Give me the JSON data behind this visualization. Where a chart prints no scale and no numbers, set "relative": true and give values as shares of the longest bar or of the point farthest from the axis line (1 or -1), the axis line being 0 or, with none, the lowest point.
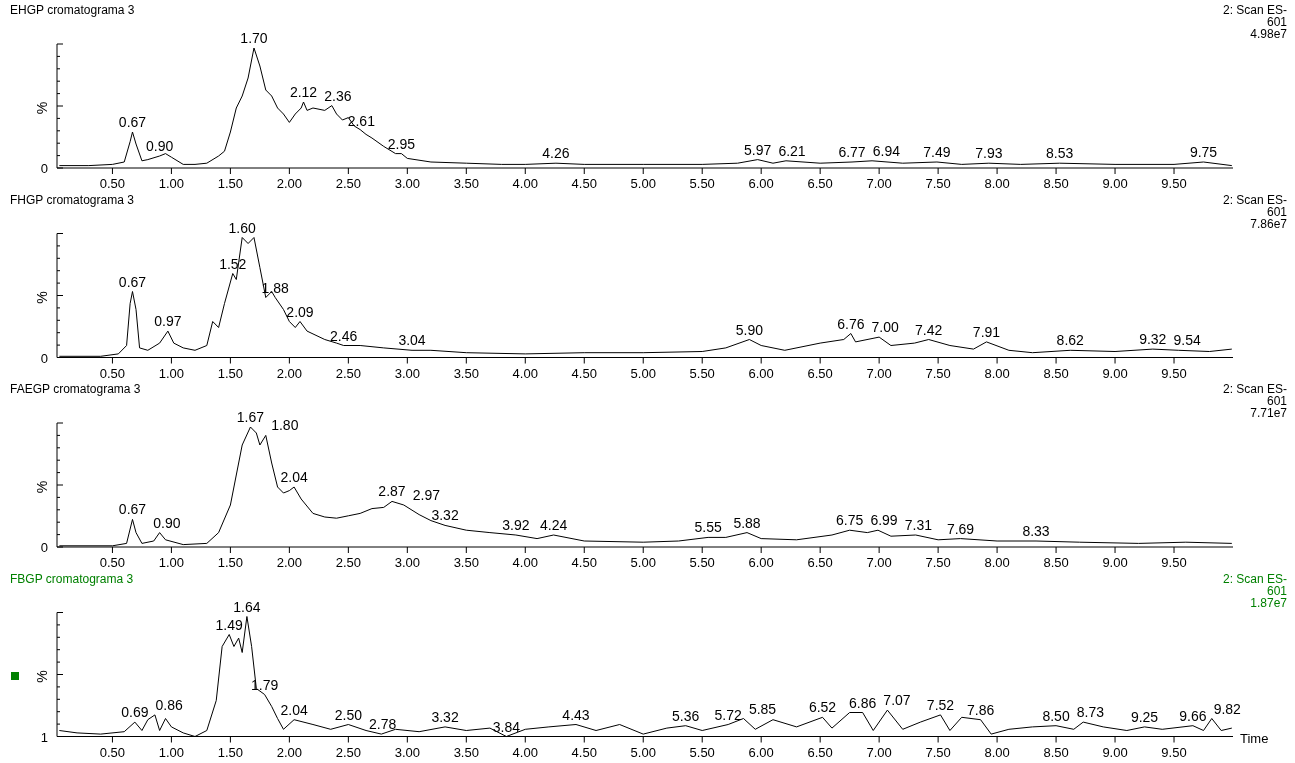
{
  "chart_data": [
    {
      "type": "line",
      "title": "EHGP cromatograma 3",
      "subtitle": "2: Scan ES-\n601\n4.98e7",
      "ylabel": "%",
      "relative": true,
      "xlim": [
        0.03,
        10.0
      ],
      "xticks": [
        {
          "value": 0.5,
          "label": "0.50"
        },
        {
          "value": 1,
          "label": "1.00"
        },
        {
          "value": 1.5,
          "label": "1.50"
        },
        {
          "value": 2,
          "label": "2.00"
        },
        {
          "value": 2.5,
          "label": "2.50"
        },
        {
          "value": 3,
          "label": "3.00"
        },
        {
          "value": 3.5,
          "label": "3.50"
        },
        {
          "value": 4,
          "label": "4.00"
        },
        {
          "value": 4.5,
          "label": "4.50"
        },
        {
          "value": 5,
          "label": "5.00"
        },
        {
          "value": 5.5,
          "label": "5.50"
        },
        {
          "value": 6,
          "label": "6.00"
        },
        {
          "value": 6.5,
          "label": "6.50"
        },
        {
          "value": 7,
          "label": "7.00"
        },
        {
          "value": 7.5,
          "label": "7.50"
        },
        {
          "value": 8,
          "label": "8.00"
        },
        {
          "value": 8.5,
          "label": "8.50"
        },
        {
          "value": 9,
          "label": "9.00"
        },
        {
          "value": 9.5,
          "label": "9.50"
        }
      ],
      "series": [
        {
          "color": "#000000",
          "x": [
            0.05,
            0.3,
            0.5,
            0.6,
            0.65,
            0.67,
            0.7,
            0.75,
            0.8,
            0.9,
            0.95,
            1.0,
            1.1,
            1.2,
            1.3,
            1.4,
            1.45,
            1.5,
            1.55,
            1.6,
            1.65,
            1.7,
            1.75,
            1.8,
            1.85,
            1.9,
            1.95,
            2.0,
            2.05,
            2.1,
            2.12,
            2.15,
            2.2,
            2.3,
            2.36,
            2.4,
            2.45,
            2.5,
            2.55,
            2.6,
            2.65,
            2.7,
            2.8,
            2.9,
            2.95,
            3.0,
            3.2,
            3.5,
            3.8,
            4.0,
            4.26,
            4.5,
            5.0,
            5.5,
            5.8,
            5.97,
            6.1,
            6.21,
            6.5,
            6.77,
            6.94,
            7.2,
            7.49,
            7.7,
            7.93,
            8.2,
            8.53,
            9.0,
            9.5,
            9.75,
            9.99
          ],
          "values": [
            0.02,
            0.02,
            0.03,
            0.05,
            0.22,
            0.3,
            0.2,
            0.06,
            0.07,
            0.1,
            0.12,
            0.09,
            0.03,
            0.03,
            0.04,
            0.1,
            0.14,
            0.3,
            0.5,
            0.6,
            0.75,
            1.0,
            0.85,
            0.65,
            0.6,
            0.5,
            0.45,
            0.38,
            0.45,
            0.5,
            0.55,
            0.48,
            0.5,
            0.48,
            0.52,
            0.45,
            0.4,
            0.42,
            0.35,
            0.32,
            0.28,
            0.25,
            0.18,
            0.12,
            0.12,
            0.08,
            0.05,
            0.04,
            0.03,
            0.03,
            0.04,
            0.03,
            0.03,
            0.03,
            0.04,
            0.07,
            0.04,
            0.06,
            0.04,
            0.05,
            0.06,
            0.04,
            0.05,
            0.03,
            0.04,
            0.03,
            0.04,
            0.03,
            0.03,
            0.05,
            0.02
          ]
        }
      ],
      "annotations": [
        "0",
        {
          "text": "0.67",
          "x": 0.67,
          "y": 0.3
        },
        {
          "text": "0.90",
          "x": 0.9,
          "y": 0.1
        },
        {
          "text": "1.70",
          "x": 1.7,
          "y": 1.0
        },
        {
          "text": "2.12",
          "x": 2.12,
          "y": 0.55
        },
        {
          "text": "2.36",
          "x": 2.36,
          "y": 0.52
        },
        {
          "text": "2.61",
          "x": 2.61,
          "y": 0.31
        },
        {
          "text": "2.95",
          "x": 2.95,
          "y": 0.12
        },
        {
          "text": "4.26",
          "x": 4.26,
          "y": 0.04
        },
        {
          "text": "5.97",
          "x": 5.97,
          "y": 0.07
        },
        {
          "text": "6.21",
          "x": 6.21,
          "y": 0.06
        },
        {
          "text": "6.77",
          "x": 6.77,
          "y": 0.05
        },
        {
          "text": "6.94",
          "x": 6.94,
          "y": 0.06
        },
        {
          "text": "7.49",
          "x": 7.49,
          "y": 0.05
        },
        {
          "text": "7.93",
          "x": 7.93,
          "y": 0.04
        },
        {
          "text": "8.53",
          "x": 8.53,
          "y": 0.04
        },
        {
          "text": "9.75",
          "x": 9.75,
          "y": 0.05
        }
      ]
    },
    {
      "type": "line",
      "title": "FHGP cromatograma 3",
      "subtitle": "2: Scan ES-\n601\n7.86e7",
      "ylabel": "%",
      "relative": true,
      "xlim": [
        0.03,
        10.0
      ],
      "xticks": [
        {
          "value": 0.5,
          "label": "0.50"
        },
        {
          "value": 1,
          "label": "1.00"
        },
        {
          "value": 1.5,
          "label": "1.50"
        },
        {
          "value": 2,
          "label": "2.00"
        },
        {
          "value": 2.5,
          "label": "2.50"
        },
        {
          "value": 3,
          "label": "3.00"
        },
        {
          "value": 3.5,
          "label": "3.50"
        },
        {
          "value": 4,
          "label": "4.00"
        },
        {
          "value": 4.5,
          "label": "4.50"
        },
        {
          "value": 5,
          "label": "5.00"
        },
        {
          "value": 5.5,
          "label": "5.50"
        },
        {
          "value": 6,
          "label": "6.00"
        },
        {
          "value": 6.5,
          "label": "6.50"
        },
        {
          "value": 7,
          "label": "7.00"
        },
        {
          "value": 7.5,
          "label": "7.50"
        },
        {
          "value": 8,
          "label": "8.00"
        },
        {
          "value": 8.5,
          "label": "8.50"
        },
        {
          "value": 9,
          "label": "9.00"
        },
        {
          "value": 9.5,
          "label": "9.50"
        }
      ],
      "series": [
        {
          "color": "#000000",
          "x": [
            0.05,
            0.4,
            0.55,
            0.62,
            0.65,
            0.67,
            0.7,
            0.73,
            0.8,
            0.9,
            0.97,
            1.02,
            1.1,
            1.2,
            1.3,
            1.35,
            1.4,
            1.45,
            1.52,
            1.55,
            1.6,
            1.65,
            1.7,
            1.75,
            1.8,
            1.85,
            1.88,
            1.95,
            2.0,
            2.05,
            2.09,
            2.15,
            2.3,
            2.4,
            2.46,
            2.6,
            2.8,
            3.04,
            3.2,
            3.5,
            4.0,
            4.5,
            5.0,
            5.5,
            5.7,
            5.9,
            6.0,
            6.2,
            6.5,
            6.7,
            6.76,
            6.8,
            7.0,
            7.1,
            7.3,
            7.42,
            7.6,
            7.8,
            7.91,
            8.1,
            8.3,
            8.62,
            9.0,
            9.32,
            9.54,
            9.8,
            9.99
          ],
          "values": [
            0.01,
            0.01,
            0.03,
            0.1,
            0.45,
            0.55,
            0.4,
            0.08,
            0.06,
            0.12,
            0.22,
            0.12,
            0.08,
            0.06,
            0.1,
            0.3,
            0.25,
            0.45,
            0.7,
            0.65,
            1.0,
            0.95,
            1.0,
            0.75,
            0.5,
            0.55,
            0.5,
            0.4,
            0.3,
            0.25,
            0.3,
            0.22,
            0.15,
            0.12,
            0.1,
            0.1,
            0.08,
            0.06,
            0.06,
            0.04,
            0.03,
            0.04,
            0.04,
            0.05,
            0.08,
            0.15,
            0.1,
            0.06,
            0.12,
            0.15,
            0.2,
            0.13,
            0.17,
            0.1,
            0.12,
            0.15,
            0.1,
            0.07,
            0.13,
            0.06,
            0.04,
            0.06,
            0.05,
            0.07,
            0.06,
            0.05,
            0.07
          ]
        }
      ],
      "annotations": [
        "0",
        {
          "text": "0.67",
          "x": 0.67,
          "y": 0.55
        },
        {
          "text": "0.97",
          "x": 0.97,
          "y": 0.22
        },
        {
          "text": "1.52",
          "x": 1.52,
          "y": 0.7
        },
        {
          "text": "1.60",
          "x": 1.6,
          "y": 1.0
        },
        {
          "text": "1.88",
          "x": 1.88,
          "y": 0.5
        },
        {
          "text": "2.09",
          "x": 2.09,
          "y": 0.3
        },
        {
          "text": "2.46",
          "x": 2.46,
          "y": 0.1
        },
        {
          "text": "3.04",
          "x": 3.04,
          "y": 0.06
        },
        {
          "text": "5.90",
          "x": 5.9,
          "y": 0.15
        },
        {
          "text": "6.76",
          "x": 6.76,
          "y": 0.2
        },
        {
          "text": "7.00",
          "x": 7.0,
          "y": 0.17
        },
        {
          "text": "7.42",
          "x": 7.42,
          "y": 0.15
        },
        {
          "text": "7.91",
          "x": 7.91,
          "y": 0.13
        },
        {
          "text": "8.62",
          "x": 8.62,
          "y": 0.06
        },
        {
          "text": "9.32",
          "x": 9.32,
          "y": 0.07
        },
        {
          "text": "9.54",
          "x": 9.54,
          "y": 0.06
        }
      ]
    },
    {
      "type": "line",
      "title": "FAEGP cromatograma 3",
      "subtitle": "2: Scan ES-\n601\n7.71e7",
      "ylabel": "%",
      "relative": true,
      "xlim": [
        0.03,
        10.0
      ],
      "xticks": [
        {
          "value": 0.5,
          "label": "0.50"
        },
        {
          "value": 1,
          "label": "1.00"
        },
        {
          "value": 1.5,
          "label": "1.50"
        },
        {
          "value": 2,
          "label": "2.00"
        },
        {
          "value": 2.5,
          "label": "2.50"
        },
        {
          "value": 3,
          "label": "3.00"
        },
        {
          "value": 3.5,
          "label": "3.50"
        },
        {
          "value": 4,
          "label": "4.00"
        },
        {
          "value": 4.5,
          "label": "4.50"
        },
        {
          "value": 5,
          "label": "5.00"
        },
        {
          "value": 5.5,
          "label": "5.50"
        },
        {
          "value": 6,
          "label": "6.00"
        },
        {
          "value": 6.5,
          "label": "6.50"
        },
        {
          "value": 7,
          "label": "7.00"
        },
        {
          "value": 7.5,
          "label": "7.50"
        },
        {
          "value": 8,
          "label": "8.00"
        },
        {
          "value": 8.5,
          "label": "8.50"
        },
        {
          "value": 9,
          "label": "9.00"
        },
        {
          "value": 9.5,
          "label": "9.50"
        }
      ],
      "series": [
        {
          "color": "#000000",
          "x": [
            0.05,
            0.5,
            0.62,
            0.67,
            0.7,
            0.75,
            0.85,
            0.9,
            0.95,
            1.1,
            1.3,
            1.4,
            1.5,
            1.55,
            1.6,
            1.67,
            1.72,
            1.75,
            1.8,
            1.85,
            1.9,
            1.95,
            2.0,
            2.04,
            2.1,
            2.2,
            2.3,
            2.4,
            2.5,
            2.6,
            2.7,
            2.8,
            2.87,
            2.97,
            3.1,
            3.2,
            3.32,
            3.5,
            3.7,
            3.92,
            4.1,
            4.24,
            4.5,
            5.0,
            5.3,
            5.55,
            5.7,
            5.88,
            6.0,
            6.3,
            6.6,
            6.75,
            6.9,
            6.99,
            7.1,
            7.31,
            7.5,
            7.69,
            8.0,
            8.33,
            8.7,
            9.2,
            9.6,
            9.99
          ],
          "values": [
            0.01,
            0.01,
            0.03,
            0.23,
            0.12,
            0.03,
            0.05,
            0.12,
            0.06,
            0.02,
            0.03,
            0.12,
            0.35,
            0.6,
            0.85,
            1.0,
            0.95,
            0.85,
            0.93,
            0.7,
            0.5,
            0.45,
            0.47,
            0.5,
            0.4,
            0.28,
            0.25,
            0.24,
            0.26,
            0.28,
            0.32,
            0.33,
            0.38,
            0.35,
            0.27,
            0.22,
            0.18,
            0.14,
            0.12,
            0.1,
            0.07,
            0.1,
            0.05,
            0.04,
            0.05,
            0.08,
            0.08,
            0.12,
            0.07,
            0.06,
            0.1,
            0.14,
            0.12,
            0.14,
            0.09,
            0.1,
            0.06,
            0.07,
            0.05,
            0.05,
            0.04,
            0.03,
            0.04,
            0.03
          ]
        }
      ],
      "annotations": [
        "0",
        {
          "text": "0.67",
          "x": 0.67,
          "y": 0.23
        },
        {
          "text": "0.90",
          "x": 0.9,
          "y": 0.12
        },
        {
          "text": "1.67",
          "x": 1.67,
          "y": 1.0
        },
        {
          "text": "1.80",
          "x": 1.8,
          "y": 0.93
        },
        {
          "text": "2.04",
          "x": 2.04,
          "y": 0.5
        },
        {
          "text": "2.87",
          "x": 2.87,
          "y": 0.38
        },
        {
          "text": "2.97",
          "x": 2.97,
          "y": 0.35
        },
        {
          "text": "3.32",
          "x": 3.32,
          "y": 0.18
        },
        {
          "text": "3.92",
          "x": 3.92,
          "y": 0.1
        },
        {
          "text": "4.24",
          "x": 4.24,
          "y": 0.1
        },
        {
          "text": "5.55",
          "x": 5.55,
          "y": 0.08
        },
        {
          "text": "5.88",
          "x": 5.88,
          "y": 0.12
        },
        {
          "text": "6.75",
          "x": 6.75,
          "y": 0.14
        },
        {
          "text": "6.99",
          "x": 6.99,
          "y": 0.14
        },
        {
          "text": "7.31",
          "x": 7.31,
          "y": 0.1
        },
        {
          "text": "7.69",
          "x": 7.69,
          "y": 0.07
        },
        {
          "text": "8.33",
          "x": 8.33,
          "y": 0.05
        }
      ]
    },
    {
      "type": "line",
      "title": "FBGP cromatograma 3",
      "subtitle": "2: Scan ES-\n601\n1.87e7",
      "ylabel": "%",
      "xlabel": "Time",
      "relative": true,
      "xlim": [
        0.03,
        10.0
      ],
      "xticks": [
        {
          "value": 0.5,
          "label": "0.50"
        },
        {
          "value": 1,
          "label": "1.00"
        },
        {
          "value": 1.5,
          "label": "1.50"
        },
        {
          "value": 2,
          "label": "2.00"
        },
        {
          "value": 2.5,
          "label": "2.50"
        },
        {
          "value": 3,
          "label": "3.00"
        },
        {
          "value": 3.5,
          "label": "3.50"
        },
        {
          "value": 4,
          "label": "4.00"
        },
        {
          "value": 4.5,
          "label": "4.50"
        },
        {
          "value": 5,
          "label": "5.00"
        },
        {
          "value": 5.5,
          "label": "5.50"
        },
        {
          "value": 6,
          "label": "6.00"
        },
        {
          "value": 6.5,
          "label": "6.50"
        },
        {
          "value": 7,
          "label": "7.00"
        },
        {
          "value": 7.5,
          "label": "7.50"
        },
        {
          "value": 8,
          "label": "8.00"
        },
        {
          "value": 8.5,
          "label": "8.50"
        },
        {
          "value": 9,
          "label": "9.00"
        },
        {
          "value": 9.5,
          "label": "9.50"
        }
      ],
      "series": [
        {
          "color": "#000000",
          "x": [
            0.05,
            0.2,
            0.4,
            0.6,
            0.69,
            0.75,
            0.8,
            0.86,
            0.9,
            0.95,
            1.0,
            1.1,
            1.2,
            1.3,
            1.38,
            1.43,
            1.49,
            1.53,
            1.57,
            1.6,
            1.64,
            1.68,
            1.72,
            1.79,
            1.85,
            1.9,
            1.95,
            2.04,
            2.2,
            2.35,
            2.5,
            2.65,
            2.78,
            2.9,
            3.1,
            3.32,
            3.5,
            3.7,
            3.84,
            4.0,
            4.2,
            4.43,
            4.6,
            4.8,
            5.0,
            5.2,
            5.36,
            5.5,
            5.72,
            5.85,
            5.95,
            6.1,
            6.3,
            6.52,
            6.6,
            6.75,
            6.86,
            6.95,
            7.07,
            7.2,
            7.35,
            7.52,
            7.6,
            7.7,
            7.86,
            7.95,
            8.1,
            8.3,
            8.5,
            8.65,
            8.73,
            8.9,
            9.1,
            9.25,
            9.4,
            9.66,
            9.75,
            9.82,
            9.9,
            9.99
          ],
          "values": [
            0.05,
            0.03,
            0.02,
            0.04,
            0.12,
            0.05,
            0.14,
            0.18,
            0.05,
            0.15,
            0.08,
            0.03,
            0.0,
            0.05,
            0.3,
            0.75,
            0.85,
            0.75,
            0.82,
            0.7,
            1.0,
            0.75,
            0.4,
            0.35,
            0.25,
            0.15,
            0.06,
            0.14,
            0.1,
            0.06,
            0.1,
            0.05,
            0.02,
            0.06,
            0.04,
            0.08,
            0.05,
            0.07,
            0.0,
            0.06,
            0.08,
            0.1,
            0.05,
            0.1,
            0.02,
            0.07,
            0.09,
            0.05,
            0.1,
            0.15,
            0.06,
            0.14,
            0.08,
            0.16,
            0.07,
            0.2,
            0.2,
            0.05,
            0.22,
            0.06,
            0.12,
            0.18,
            0.05,
            0.16,
            0.14,
            0.02,
            0.06,
            0.08,
            0.09,
            0.06,
            0.12,
            0.08,
            0.05,
            0.08,
            0.06,
            0.09,
            0.05,
            0.15,
            0.05,
            0.07
          ]
        }
      ],
      "annotations": [
        "1",
        {
          "text": "0.69",
          "x": 0.69,
          "y": 0.12
        },
        {
          "text": "0.86",
          "x": 0.86,
          "y": 0.18
        },
        {
          "text": "1.49",
          "x": 1.49,
          "y": 0.85
        },
        {
          "text": "1.64",
          "x": 1.64,
          "y": 1.0
        },
        {
          "text": "1.79",
          "x": 1.79,
          "y": 0.35
        },
        {
          "text": "2.04",
          "x": 2.04,
          "y": 0.14
        },
        {
          "text": "2.50",
          "x": 2.5,
          "y": 0.1
        },
        {
          "text": "2.78",
          "x": 2.78,
          "y": 0.02
        },
        {
          "text": "3.32",
          "x": 3.32,
          "y": 0.08
        },
        {
          "text": "3.84",
          "x": 3.84,
          "y": 0.0
        },
        {
          "text": "4.43",
          "x": 4.43,
          "y": 0.1
        },
        {
          "text": "5.36",
          "x": 5.36,
          "y": 0.09
        },
        {
          "text": "5.72",
          "x": 5.72,
          "y": 0.1
        },
        {
          "text": "5.85",
          "x": 5.85,
          "y": 0.15
        },
        {
          "text": "6.52",
          "x": 6.52,
          "y": 0.16
        },
        {
          "text": "6.86",
          "x": 6.86,
          "y": 0.2
        },
        {
          "text": "7.07",
          "x": 7.07,
          "y": 0.22
        },
        {
          "text": "7.52",
          "x": 7.52,
          "y": 0.18
        },
        {
          "text": "7.86",
          "x": 7.86,
          "y": 0.14
        },
        {
          "text": "8.50",
          "x": 8.5,
          "y": 0.09
        },
        {
          "text": "8.73",
          "x": 8.73,
          "y": 0.12
        },
        {
          "text": "9.25",
          "x": 9.25,
          "y": 0.08
        },
        {
          "text": "9.66",
          "x": 9.66,
          "y": 0.09
        },
        {
          "text": "9.82",
          "x": 9.82,
          "y": 0.15
        }
      ]
    }
  ]
}
